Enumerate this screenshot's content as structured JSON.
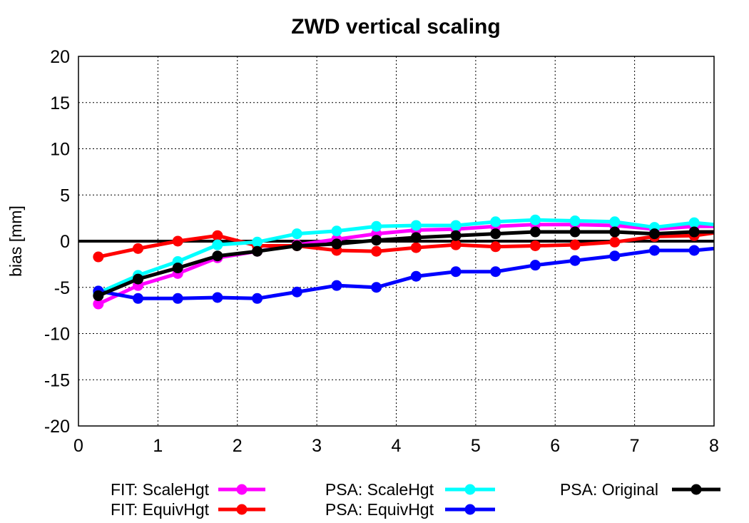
{
  "chart_data": {
    "type": "line",
    "title": "ZWD vertical scaling",
    "xlabel": "",
    "ylabel": "bias [mm]",
    "xlim": [
      0,
      8
    ],
    "ylim": [
      -20,
      20
    ],
    "xticks": [
      "0",
      "1",
      "2",
      "3",
      "4",
      "5",
      "6",
      "7",
      "8"
    ],
    "yticks": [
      "-20",
      "-15",
      "-10",
      "-5",
      "0",
      "5",
      "10",
      "15",
      "20"
    ],
    "grid": true,
    "legend_position": "bottom",
    "x": [
      0.25,
      0.75,
      1.25,
      1.75,
      2.25,
      2.75,
      3.25,
      3.75,
      4.25,
      4.75,
      5.25,
      5.75,
      6.25,
      6.75,
      7.25,
      7.75,
      8.0
    ],
    "series": [
      {
        "name": "FIT: ScaleHgt",
        "color": "#ff00ff",
        "values": [
          -6.8,
          -4.8,
          -3.5,
          -1.8,
          -1.1,
          -0.4,
          0.2,
          0.8,
          1.2,
          1.3,
          1.6,
          1.8,
          1.8,
          1.7,
          1.3,
          1.6,
          1.6
        ]
      },
      {
        "name": "FIT: EquivHgt",
        "color": "#ff0000",
        "values": [
          -1.7,
          -0.8,
          0.0,
          0.6,
          -0.5,
          -0.5,
          -1.0,
          -1.1,
          -0.7,
          -0.4,
          -0.6,
          -0.5,
          -0.4,
          -0.1,
          0.5,
          0.6,
          0.9
        ]
      },
      {
        "name": "PSA: ScaleHgt",
        "color": "#00ffff",
        "values": [
          -5.6,
          -3.7,
          -2.2,
          -0.4,
          -0.1,
          0.8,
          1.1,
          1.6,
          1.7,
          1.7,
          2.1,
          2.3,
          2.2,
          2.1,
          1.5,
          2.0,
          1.8
        ]
      },
      {
        "name": "PSA: EquivHgt",
        "color": "#0000ff",
        "values": [
          -5.4,
          -6.2,
          -6.2,
          -6.1,
          -6.2,
          -5.5,
          -4.8,
          -5.0,
          -3.8,
          -3.3,
          -3.3,
          -2.6,
          -2.1,
          -1.6,
          -1.0,
          -1.0,
          -0.8
        ]
      },
      {
        "name": "PSA: Original",
        "color": "#000000",
        "values": [
          -5.9,
          -4.1,
          -2.9,
          -1.6,
          -1.1,
          -0.5,
          -0.3,
          0.1,
          0.4,
          0.6,
          0.8,
          1.0,
          1.0,
          1.0,
          0.8,
          1.0,
          1.0
        ]
      }
    ],
    "zero_line": true
  }
}
